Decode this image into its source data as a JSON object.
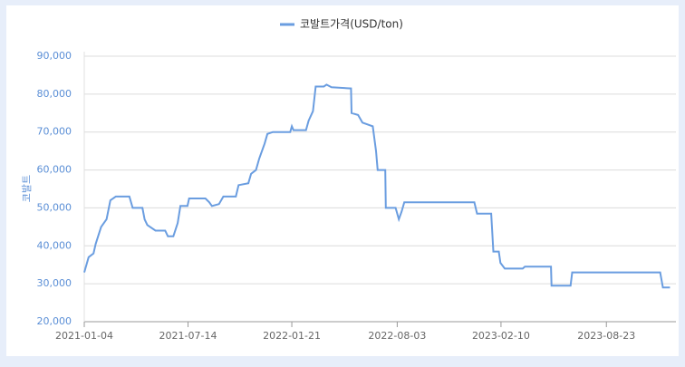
{
  "chart_data": {
    "type": "line",
    "y_label": "코발트",
    "x": [
      "2021-01-04",
      "2021-01-12",
      "2021-01-21",
      "2021-01-25",
      "2021-02-04",
      "2021-02-14",
      "2021-02-21",
      "2021-03-03",
      "2021-03-28",
      "2021-04-03",
      "2021-04-21",
      "2021-04-25",
      "2021-04-30",
      "2021-05-15",
      "2021-06-02",
      "2021-06-07",
      "2021-06-17",
      "2021-06-25",
      "2021-06-30",
      "2021-07-13",
      "2021-07-16",
      "2021-08-15",
      "2021-08-22",
      "2021-08-27",
      "2021-09-09",
      "2021-09-17",
      "2021-10-10",
      "2021-10-15",
      "2021-11-02",
      "2021-11-07",
      "2021-11-16",
      "2021-11-22",
      "2021-12-02",
      "2021-12-07",
      "2021-12-17",
      "2022-01-18",
      "2022-01-21",
      "2022-01-24",
      "2022-02-16",
      "2022-02-21",
      "2022-03-01",
      "2022-03-06",
      "2022-03-21",
      "2022-03-26",
      "2022-04-04",
      "2022-05-10",
      "2022-05-11",
      "2022-05-23",
      "2022-05-31",
      "2022-06-19",
      "2022-06-25",
      "2022-06-28",
      "2022-07-12",
      "2022-07-13",
      "2022-07-31",
      "2022-08-06",
      "2022-08-11",
      "2022-08-16",
      "2022-12-23",
      "2022-12-28",
      "2023-01-23",
      "2023-01-27",
      "2023-02-06",
      "2023-02-09",
      "2023-02-17",
      "2023-03-22",
      "2023-03-26",
      "2023-05-13",
      "2023-05-14",
      "2023-06-18",
      "2023-06-21",
      "2023-11-30",
      "2023-12-05",
      "2023-12-18"
    ],
    "series": [
      {
        "name": "코발트가격(USD/ton)",
        "color": "#6a9de0",
        "values": [
          33000,
          37000,
          38000,
          40500,
          45000,
          47000,
          52000,
          53000,
          53000,
          50000,
          50000,
          47000,
          45500,
          44000,
          44000,
          42500,
          42500,
          46000,
          50500,
          50500,
          52500,
          52500,
          51500,
          50500,
          51000,
          53000,
          53000,
          56000,
          56500,
          59000,
          60000,
          63000,
          67000,
          69500,
          70000,
          70000,
          71500,
          70500,
          70500,
          73000,
          75500,
          82000,
          82000,
          82500,
          81800,
          81500,
          75000,
          74500,
          72500,
          71500,
          65000,
          60000,
          60000,
          50000,
          50000,
          47000,
          49000,
          51500,
          51500,
          48500,
          48500,
          38500,
          38500,
          35500,
          34000,
          34000,
          34500,
          34500,
          29500,
          29500,
          33000,
          33000,
          29000,
          29000
        ]
      }
    ],
    "xlim": [
      "2021-01-04",
      "2023-12-29"
    ],
    "xticks": [
      "2021-01-04",
      "2021-07-14",
      "2022-01-21",
      "2022-08-03",
      "2023-02-10",
      "2023-08-23"
    ],
    "ylim": [
      20000,
      90000
    ],
    "yticks": [
      {
        "value": 20000,
        "label": "20,000"
      },
      {
        "value": 30000,
        "label": "30,000"
      },
      {
        "value": 40000,
        "label": "40,000"
      },
      {
        "value": 50000,
        "label": "50,000"
      },
      {
        "value": 60000,
        "label": "60,000"
      },
      {
        "value": 70000,
        "label": "70,000"
      },
      {
        "value": 80000,
        "label": "80,000"
      },
      {
        "value": 90000,
        "label": "90,000"
      }
    ],
    "grid": true,
    "legend": "top"
  }
}
